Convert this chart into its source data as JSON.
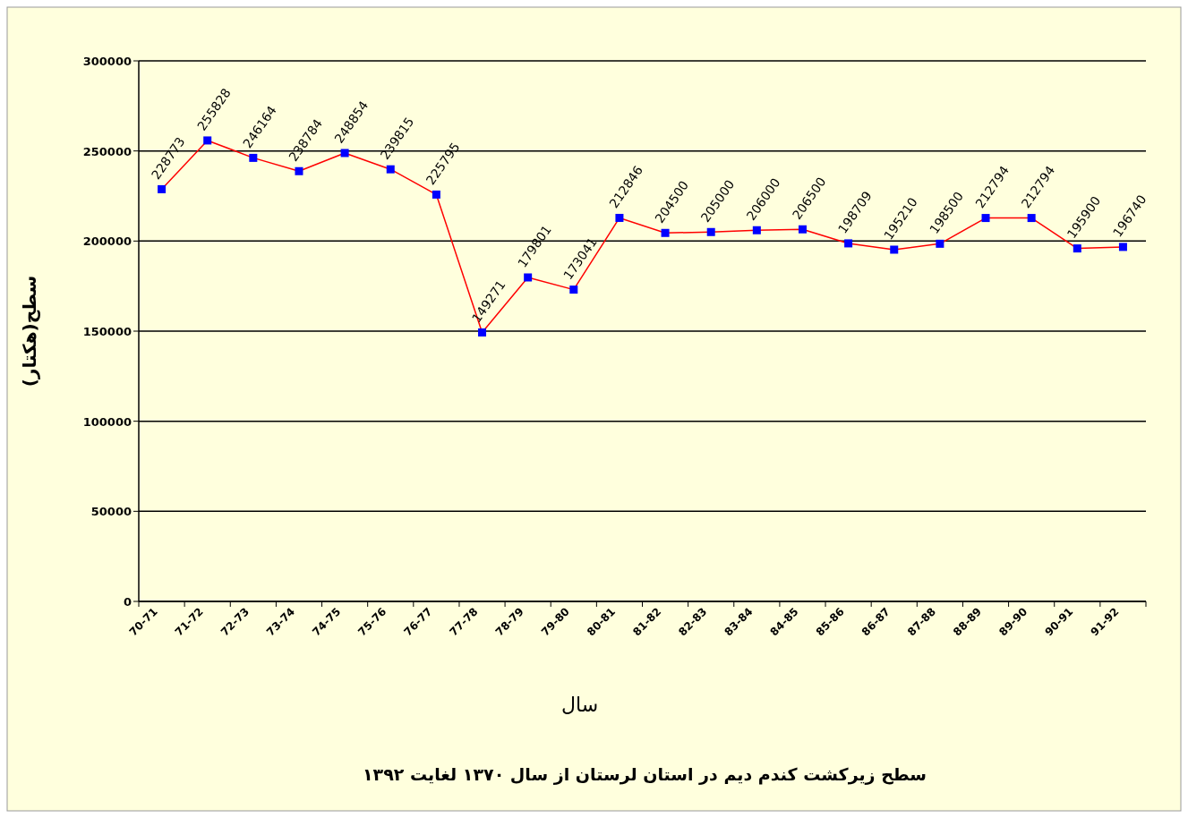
{
  "chart_data": {
    "type": "line",
    "title": "سطح زیرکشت کندم دیم در استان لرستان از سال ۱۳۷۰ لغایت ۱۳۹۲",
    "xlabel": "سال",
    "ylabel": "سطح(هکتار)",
    "categories": [
      "70-71",
      "71-72",
      "72-73",
      "73-74",
      "74-75",
      "75-76",
      "76-77",
      "77-78",
      "78-79",
      "79-80",
      "80-81",
      "81-82",
      "82-83",
      "83-84",
      "84-85",
      "85-86",
      "86-87",
      "87-88",
      "88-89",
      "89-90",
      "90-91",
      "91-92"
    ],
    "series": [
      {
        "color": "#ff0000",
        "values": [
          228773,
          255828,
          246164,
          238784,
          248854,
          239815,
          225795,
          149271,
          179801,
          173041,
          212846,
          204500,
          205000,
          206000,
          206500,
          198709,
          195210,
          198500,
          212794,
          212794,
          195900,
          196740
        ]
      }
    ],
    "ylim": [
      0,
      300000
    ],
    "yticks": [
      0,
      50000,
      100000,
      150000,
      200000,
      250000,
      300000
    ],
    "grid": "y",
    "marker": "square",
    "data_labels": true
  }
}
